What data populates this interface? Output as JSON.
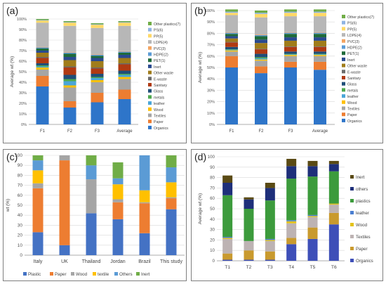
{
  "panels": {
    "a": "(a)",
    "b": "(b)",
    "c": "(c)",
    "d": "(d)"
  },
  "chart_data": [
    {
      "id": "a",
      "type": "bar",
      "stacked": true,
      "categories": [
        "F1",
        "F2",
        "F3",
        "Average"
      ],
      "ylabel": "Average wt (%)",
      "xlabel": "",
      "ylim": [
        0,
        100
      ],
      "yticks": [
        0,
        10,
        20,
        30,
        40,
        50,
        60,
        70,
        80,
        90,
        100
      ],
      "ytick_format": "percent",
      "grid": true,
      "legend_position": "right",
      "series": [
        {
          "name": "Organics",
          "color": "#2e75c9",
          "values": [
            36,
            16,
            21,
            24
          ]
        },
        {
          "name": "Paper",
          "color": "#ed7d31",
          "values": [
            10,
            6,
            9,
            9
          ]
        },
        {
          "name": "Textiles",
          "color": "#a5a5a5",
          "values": [
            6,
            13,
            10,
            10
          ]
        },
        {
          "name": "Wood",
          "color": "#ffc000",
          "values": [
            2,
            2,
            2,
            2
          ]
        },
        {
          "name": "leather",
          "color": "#4aa6d8",
          "values": [
            1,
            4,
            2,
            2
          ]
        },
        {
          "name": "metals",
          "color": "#4ea84e",
          "values": [
            1,
            2,
            1,
            1
          ]
        },
        {
          "name": "Glass",
          "color": "#1f4e79",
          "values": [
            2,
            4,
            3,
            3
          ]
        },
        {
          "name": "Sanitary",
          "color": "#b03a12",
          "values": [
            5,
            7,
            5,
            6
          ]
        },
        {
          "name": "E-waste",
          "color": "#6b6b6b",
          "values": [
            1,
            1,
            1,
            1
          ]
        },
        {
          "name": "Other waste",
          "color": "#a07c1a",
          "values": [
            4,
            6,
            6,
            5
          ]
        },
        {
          "name": "Inert",
          "color": "#2a4a8f",
          "values": [
            2,
            3,
            3,
            3
          ]
        },
        {
          "name": "PET(1)",
          "color": "#1f6b3a",
          "values": [
            2,
            3,
            2,
            2
          ]
        },
        {
          "name": "HDPE(2)",
          "color": "#5b9bd5",
          "values": [
            1,
            1,
            1,
            1
          ]
        },
        {
          "name": "PVC(3)",
          "color": "#f4a460",
          "values": [
            0.5,
            0.5,
            0.5,
            0.5
          ]
        },
        {
          "name": "LDPE(4)",
          "color": "#b7b7b7",
          "values": [
            23,
            25,
            25,
            24
          ]
        },
        {
          "name": "PP(5)",
          "color": "#ffd966",
          "values": [
            2,
            3,
            3,
            3
          ]
        },
        {
          "name": "PS(6)",
          "color": "#8fb4e3",
          "values": [
            0.5,
            0.5,
            0.5,
            0.5
          ]
        },
        {
          "name": "Other plastics(7)",
          "color": "#70ad47",
          "values": [
            1,
            1,
            1,
            1
          ]
        }
      ]
    },
    {
      "id": "b",
      "type": "bar",
      "stacked": true,
      "categories": [
        "F1",
        "F2",
        "F3",
        "Average"
      ],
      "ylabel": "Average wt (%)",
      "xlabel": "",
      "ylim": [
        0,
        100
      ],
      "yticks": [
        0,
        10,
        20,
        30,
        40,
        50,
        60,
        70,
        80,
        90,
        100
      ],
      "ytick_format": "percent",
      "grid": true,
      "legend_position": "right",
      "series": [
        {
          "name": "Organics",
          "color": "#2e75c9",
          "values": [
            50,
            45,
            50,
            48
          ]
        },
        {
          "name": "Paper",
          "color": "#ed7d31",
          "values": [
            10,
            6,
            5,
            7
          ]
        },
        {
          "name": "Textiles",
          "color": "#a5a5a5",
          "values": [
            4,
            5,
            5,
            5
          ]
        },
        {
          "name": "Wood",
          "color": "#ffc000",
          "values": [
            1,
            1,
            1,
            1
          ]
        },
        {
          "name": "leather",
          "color": "#4aa6d8",
          "values": [
            0.5,
            1,
            0.5,
            0.5
          ]
        },
        {
          "name": "metals",
          "color": "#4ea84e",
          "values": [
            0.5,
            1,
            0.5,
            0.5
          ]
        },
        {
          "name": "Glass",
          "color": "#1f4e79",
          "values": [
            2,
            3,
            2,
            2
          ]
        },
        {
          "name": "Sanitary",
          "color": "#b03a12",
          "values": [
            4,
            4,
            4,
            4
          ]
        },
        {
          "name": "E-waste",
          "color": "#6b6b6b",
          "values": [
            0.5,
            0.5,
            0.5,
            0.5
          ]
        },
        {
          "name": "Other waste",
          "color": "#a07c1a",
          "values": [
            3,
            5,
            5,
            5
          ]
        },
        {
          "name": "Inert",
          "color": "#2a4a8f",
          "values": [
            2,
            3,
            3,
            3
          ]
        },
        {
          "name": "PET(1)",
          "color": "#1f6b3a",
          "values": [
            2,
            3,
            3,
            3
          ]
        },
        {
          "name": "HDPE(2)",
          "color": "#5b9bd5",
          "values": [
            1,
            1,
            1,
            1
          ]
        },
        {
          "name": "PVC(3)",
          "color": "#f4a460",
          "values": [
            0.5,
            0.5,
            0.5,
            0.5
          ]
        },
        {
          "name": "LDPE(4)",
          "color": "#b7b7b7",
          "values": [
            15,
            15,
            14,
            14
          ]
        },
        {
          "name": "PP(5)",
          "color": "#ffd966",
          "values": [
            2,
            3,
            3,
            3
          ]
        },
        {
          "name": "PS(6)",
          "color": "#8fb4e3",
          "values": [
            1,
            1,
            1,
            1
          ]
        },
        {
          "name": "Other plastics(7)",
          "color": "#70ad47",
          "values": [
            2,
            2,
            2,
            2
          ]
        }
      ]
    },
    {
      "id": "c",
      "type": "bar",
      "stacked": true,
      "categories": [
        "Italy",
        "UK",
        "Thailand",
        "Jordan",
        "Brazil",
        "This study"
      ],
      "ylabel": "wt (%)",
      "xlabel": "",
      "ylim": [
        0,
        100
      ],
      "yticks": [
        0,
        10,
        20,
        30,
        40,
        50,
        60,
        70,
        80,
        90,
        100
      ],
      "ytick_format": "plain",
      "grid": true,
      "legend_position": "bottom",
      "series": [
        {
          "name": "Plastic",
          "color": "#4472c4",
          "values": [
            23,
            10,
            42,
            36,
            22,
            46
          ]
        },
        {
          "name": "Paper",
          "color": "#ed7d31",
          "values": [
            44,
            85,
            0,
            17,
            30,
            11
          ]
        },
        {
          "name": "Wood",
          "color": "#a5a5a5",
          "values": [
            5,
            5,
            34,
            3,
            1,
            1
          ]
        },
        {
          "name": "textile",
          "color": "#ffc000",
          "values": [
            13,
            0,
            0,
            15,
            12,
            15
          ]
        },
        {
          "name": "Others",
          "color": "#5b9bd5",
          "values": [
            10,
            0,
            14,
            6,
            35,
            15
          ]
        },
        {
          "name": "Inert",
          "color": "#70ad47",
          "values": [
            5,
            0,
            10,
            16,
            0,
            12
          ]
        }
      ]
    },
    {
      "id": "d",
      "type": "bar",
      "stacked": true,
      "categories": [
        "T1",
        "T2",
        "T3",
        "T4",
        "T5",
        "T6"
      ],
      "ylabel": "Average wt (%)",
      "xlabel": "",
      "ylim": [
        0,
        100
      ],
      "yticks": [
        0,
        10,
        20,
        30,
        40,
        50,
        60,
        70,
        80,
        90,
        100
      ],
      "ytick_format": "plain",
      "grid": true,
      "legend_position": "right",
      "series": [
        {
          "name": "Organics",
          "color": "#3e4fb8",
          "values": [
            1,
            1,
            1,
            16,
            21,
            35
          ]
        },
        {
          "name": "Paper",
          "color": "#c99a2e",
          "values": [
            6,
            9,
            8,
            6,
            11,
            11
          ]
        },
        {
          "name": "Textiles",
          "color": "#bdb3b3",
          "values": [
            14,
            9,
            10,
            14,
            10,
            8
          ]
        },
        {
          "name": "Wood",
          "color": "#e3c21a",
          "values": [
            1,
            0,
            1,
            2,
            1,
            1
          ]
        },
        {
          "name": "leather",
          "color": "#4b7fd1",
          "values": [
            1,
            0,
            1,
            1,
            1,
            0
          ]
        },
        {
          "name": "plastics",
          "color": "#3c9b3c",
          "values": [
            40,
            31,
            37,
            40,
            37,
            31
          ]
        },
        {
          "name": "others",
          "color": "#1e2f7a",
          "values": [
            12,
            9,
            12,
            12,
            10,
            7
          ]
        },
        {
          "name": "Inert",
          "color": "#5a4a14",
          "values": [
            7,
            2,
            5,
            7,
            5,
            3
          ]
        }
      ]
    }
  ]
}
